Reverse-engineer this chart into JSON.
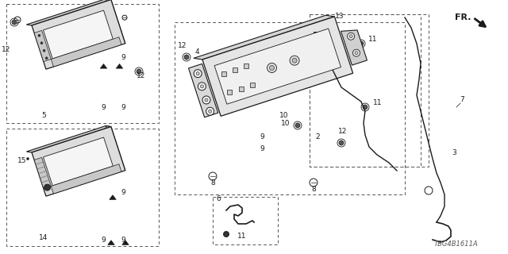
{
  "bg": "#ffffff",
  "lc": "#1a1a1a",
  "fig_w": 6.4,
  "fig_h": 3.2,
  "dpi": 100,
  "watermark": "TBG4B1611A",
  "label_fs": 6.5,
  "gray_light": "#e0e0e0",
  "gray_mid": "#b0b0b0",
  "gray_dark": "#808080"
}
